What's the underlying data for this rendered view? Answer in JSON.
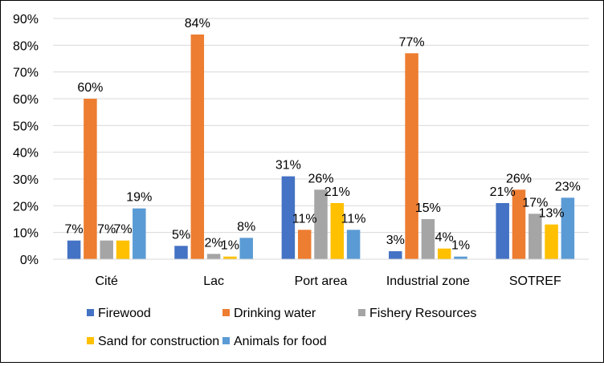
{
  "chart_data": {
    "type": "bar",
    "categories": [
      "Cité",
      "Lac",
      "Port area",
      "Industrial zone",
      "SOTREF"
    ],
    "series": [
      {
        "name": "Firewood",
        "color": "#4472C4",
        "values": [
          7,
          5,
          31,
          3,
          21
        ]
      },
      {
        "name": "Drinking water",
        "color": "#ED7D31",
        "values": [
          60,
          84,
          11,
          77,
          26
        ]
      },
      {
        "name": "Fishery Resources",
        "color": "#A5A5A5",
        "values": [
          7,
          2,
          26,
          15,
          17
        ]
      },
      {
        "name": "Sand for construction",
        "color": "#FFC000",
        "values": [
          7,
          1,
          21,
          4,
          13
        ]
      },
      {
        "name": "Animals for food",
        "color": "#5B9BD5",
        "values": [
          19,
          8,
          11,
          1,
          23
        ]
      }
    ],
    "ylim": [
      0,
      90
    ],
    "yticks": [
      0,
      10,
      20,
      30,
      40,
      50,
      60,
      70,
      80,
      90
    ],
    "value_suffix": "%",
    "grid": "horizontal",
    "legend_position": "bottom",
    "title": "",
    "xlabel": "",
    "ylabel": ""
  }
}
